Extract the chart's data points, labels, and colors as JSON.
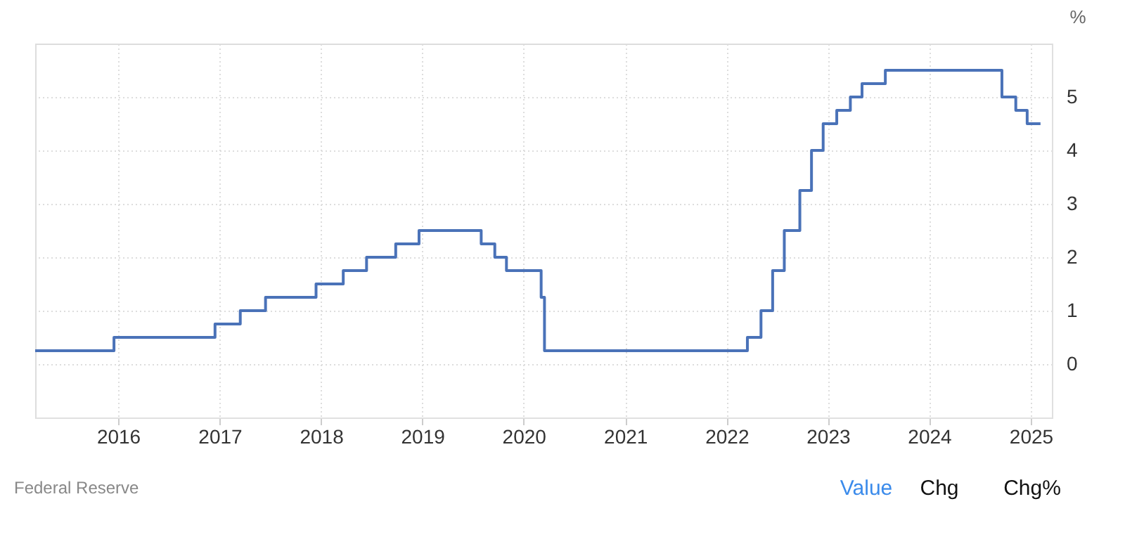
{
  "chart_data": {
    "type": "step",
    "ylabel": "%",
    "x": [
      "2015-03-08",
      "2015-12-17",
      "2016-12-15",
      "2017-03-16",
      "2017-06-15",
      "2017-12-14",
      "2018-03-22",
      "2018-06-14",
      "2018-09-27",
      "2018-12-20",
      "2019-08-01",
      "2019-09-19",
      "2019-10-31",
      "2020-03-04",
      "2020-03-16",
      "2022-03-17",
      "2022-05-05",
      "2022-06-16",
      "2022-07-28",
      "2022-09-22",
      "2022-11-03",
      "2022-12-15",
      "2023-02-02",
      "2023-03-23",
      "2023-05-04",
      "2023-07-27",
      "2024-09-19",
      "2024-11-08",
      "2024-12-19",
      "2025-02-05"
    ],
    "series": [
      {
        "color": "#4a72b8",
        "values": [
          0.25,
          0.5,
          0.75,
          1.0,
          1.25,
          1.5,
          1.75,
          2.0,
          2.25,
          2.5,
          2.25,
          2.0,
          1.75,
          1.25,
          0.25,
          0.5,
          1.0,
          1.75,
          2.5,
          3.25,
          4.0,
          4.5,
          4.75,
          5.0,
          5.25,
          5.5,
          5.0,
          4.75,
          4.5,
          4.5
        ]
      }
    ],
    "xlim": [
      "2015-03-08",
      "2025-03-18"
    ],
    "xticks": [
      "2016",
      "2017",
      "2018",
      "2019",
      "2020",
      "2021",
      "2022",
      "2023",
      "2024",
      "2025"
    ],
    "ylim": [
      -1,
      6
    ],
    "yticks": [
      0,
      1,
      2,
      3,
      4,
      5
    ],
    "grid": true,
    "annotations": [
      "Federal Reserve",
      "Value",
      "Chg",
      "Chg%"
    ]
  }
}
